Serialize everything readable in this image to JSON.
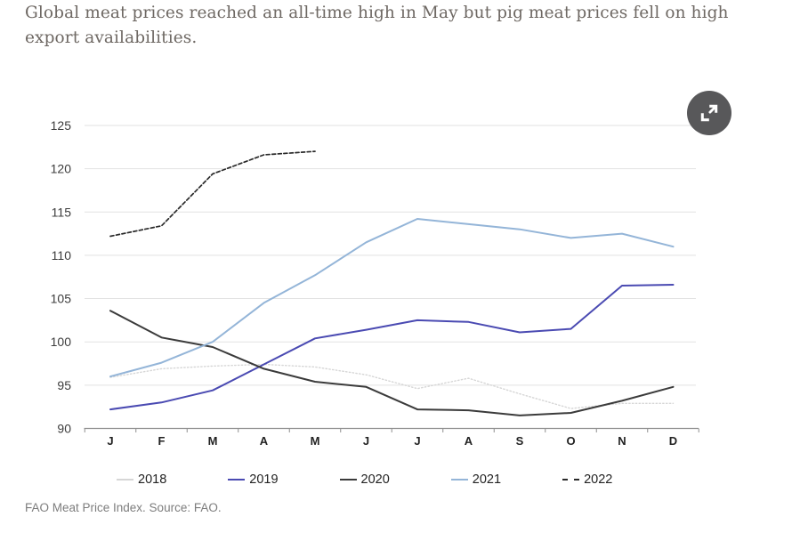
{
  "title": "Global meat prices reached an all-time high in May but pig meat prices fell on high export availabilities.",
  "source_note": "FAO Meat Price Index. Source: FAO.",
  "expand_button": {
    "icon": "expand-icon"
  },
  "colors": {
    "background": "#ffffff",
    "gridline": "#e2e2e2",
    "axis": "#8f8f8f",
    "tick_label": "#3c3c3c",
    "month_label": "#222222",
    "title_text": "#6e6863",
    "source_text": "#7d7d7d",
    "expand_button_bg": "#58585a"
  },
  "chart_data": {
    "type": "line",
    "x_labels": [
      "J",
      "F",
      "M",
      "A",
      "M",
      "J",
      "J",
      "A",
      "S",
      "O",
      "N",
      "D"
    ],
    "ylim": [
      90,
      125
    ],
    "yticks": [
      90,
      95,
      100,
      105,
      110,
      115,
      120,
      125
    ],
    "grid": true,
    "legend_position": "bottom",
    "series": [
      {
        "name": "2018",
        "color": "#d6d6d6",
        "style": "dotted",
        "values": [
          95.9,
          96.9,
          97.2,
          97.4,
          97.1,
          96.2,
          94.6,
          95.8,
          94.0,
          92.3,
          92.9,
          92.9
        ]
      },
      {
        "name": "2019",
        "color": "#4a4ab2",
        "style": "solid",
        "values": [
          92.2,
          93.0,
          94.4,
          97.4,
          100.4,
          101.4,
          102.5,
          102.3,
          101.1,
          101.5,
          106.5,
          106.6
        ]
      },
      {
        "name": "2020",
        "color": "#3b3b3b",
        "style": "solid",
        "values": [
          103.6,
          100.5,
          99.4,
          96.9,
          95.4,
          94.8,
          92.2,
          92.1,
          91.5,
          91.8,
          93.2,
          94.8
        ]
      },
      {
        "name": "2021",
        "color": "#94b5d8",
        "style": "solid",
        "values": [
          96.0,
          97.6,
          100.0,
          104.5,
          107.7,
          111.5,
          114.2,
          113.6,
          113.0,
          112.0,
          112.5,
          111.0
        ]
      },
      {
        "name": "2022",
        "color": "#2a2a2a",
        "style": "dashed",
        "values": [
          112.2,
          113.4,
          119.4,
          121.6,
          122.0,
          null,
          null,
          null,
          null,
          null,
          null,
          null
        ]
      }
    ]
  }
}
